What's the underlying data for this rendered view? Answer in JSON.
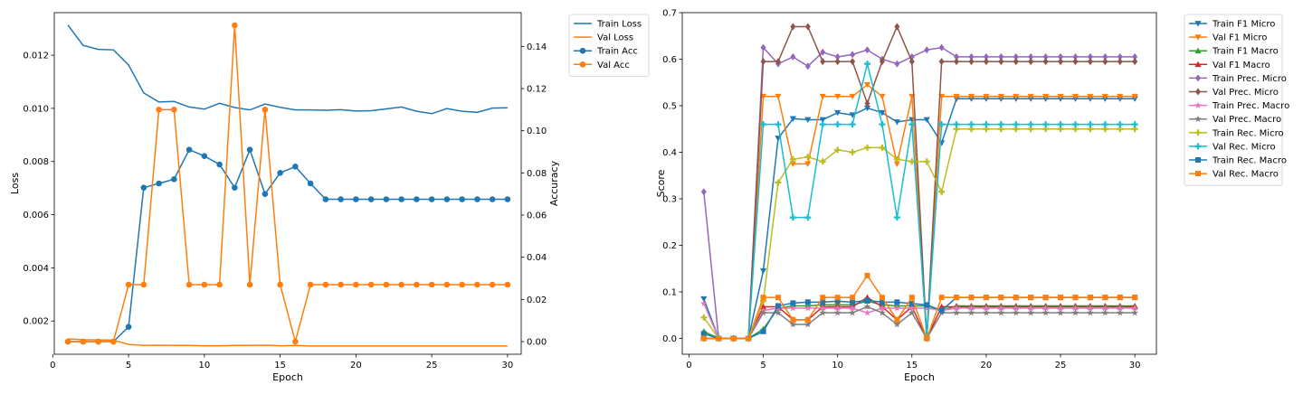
{
  "chart_data": [
    {
      "type": "line",
      "xlabel": "Epoch",
      "ylabel": "Loss",
      "ylabel_right": "Accuracy",
      "xlim": [
        0.1,
        30.9
      ],
      "ylim": [
        0.00075,
        0.0136
      ],
      "ylim_right": [
        -0.006,
        0.156
      ],
      "xticks": [
        0,
        5,
        10,
        15,
        20,
        25,
        30
      ],
      "yticks": [
        0.002,
        0.004,
        0.006,
        0.008,
        0.01,
        0.012
      ],
      "yticks_right": [
        0.0,
        0.02,
        0.04,
        0.06,
        0.08,
        0.1,
        0.12,
        0.14
      ],
      "legend_position": "outside-top-right",
      "x": [
        1,
        2,
        3,
        4,
        5,
        6,
        7,
        8,
        9,
        10,
        11,
        12,
        13,
        14,
        15,
        16,
        17,
        18,
        19,
        20,
        21,
        22,
        23,
        24,
        25,
        26,
        27,
        28,
        29,
        30
      ],
      "series": [
        {
          "name": "Train Loss",
          "axis": "left",
          "color": "#1f77b4",
          "marker": "none",
          "values": [
            0.01313,
            0.01237,
            0.01222,
            0.0122,
            0.01163,
            0.01058,
            0.01024,
            0.01026,
            0.01005,
            0.00997,
            0.01019,
            0.01003,
            0.00994,
            0.01016,
            0.01004,
            0.00994,
            0.00994,
            0.00993,
            0.00995,
            0.0099,
            0.00991,
            0.00998,
            0.01005,
            0.00989,
            0.0098,
            0.00999,
            0.00989,
            0.00985,
            0.01001,
            0.01002
          ]
        },
        {
          "name": "Val Loss",
          "axis": "left",
          "color": "#ff7f0e",
          "marker": "none",
          "values": [
            0.00133,
            0.0013,
            0.00129,
            0.00128,
            0.00112,
            0.00108,
            0.00109,
            0.00108,
            0.00108,
            0.00107,
            0.00107,
            0.00108,
            0.00108,
            0.00109,
            0.00107,
            0.00108,
            0.00106,
            0.00106,
            0.00106,
            0.00106,
            0.00106,
            0.00106,
            0.00106,
            0.00106,
            0.00106,
            0.00106,
            0.00106,
            0.00106,
            0.00106,
            0.00106
          ]
        },
        {
          "name": "Train Acc",
          "axis": "right",
          "color": "#1f77b4",
          "marker": "circle",
          "values": [
            0,
            0,
            0,
            0,
            0.007,
            0.073,
            0.075,
            0.077,
            0.091,
            0.088,
            0.084,
            0.073,
            0.091,
            0.07,
            0.08,
            0.083,
            0.075,
            0.0675,
            0.0675,
            0.0675,
            0.0675,
            0.0675,
            0.0675,
            0.0675,
            0.0675,
            0.0675,
            0.0675,
            0.0675,
            0.0675,
            0.0675
          ]
        },
        {
          "name": "Val Acc",
          "axis": "right",
          "color": "#ff7f0e",
          "marker": "circle",
          "values": [
            0,
            0,
            0,
            0,
            0.027,
            0.027,
            0.11,
            0.11,
            0.027,
            0.027,
            0.027,
            0.15,
            0.027,
            0.11,
            0.027,
            0,
            0.027,
            0.027,
            0.027,
            0.027,
            0.027,
            0.027,
            0.027,
            0.027,
            0.027,
            0.027,
            0.027,
            0.027,
            0.027,
            0.027
          ]
        }
      ]
    },
    {
      "type": "line",
      "xlabel": "Epoch",
      "ylabel": "Score",
      "xlim": [
        -0.45,
        31.45
      ],
      "ylim": [
        -0.034,
        0.7
      ],
      "xticks": [
        0,
        5,
        10,
        15,
        20,
        25,
        30
      ],
      "yticks": [
        0.0,
        0.1,
        0.2,
        0.3,
        0.4,
        0.5,
        0.6,
        0.7
      ],
      "legend_position": "outside-top-right",
      "x": [
        1,
        2,
        3,
        4,
        5,
        6,
        7,
        8,
        9,
        10,
        11,
        12,
        13,
        14,
        15,
        16,
        17,
        18,
        19,
        20,
        21,
        22,
        23,
        24,
        25,
        26,
        27,
        28,
        29,
        30
      ],
      "series": [
        {
          "name": "Train F1 Micro",
          "color": "#1f77b4",
          "marker": "tri-down",
          "values": [
            0.085,
            0,
            0,
            0,
            0.145,
            0.43,
            0.472,
            0.47,
            0.47,
            0.485,
            0.48,
            0.495,
            0.485,
            0.465,
            0.47,
            0.47,
            0.42,
            0.515,
            0.515,
            0.515,
            0.515,
            0.515,
            0.515,
            0.515,
            0.515,
            0.515,
            0.515,
            0.515,
            0.515,
            0.515
          ]
        },
        {
          "name": "Val F1 Micro",
          "color": "#ff7f0e",
          "marker": "tri-down",
          "values": [
            0,
            0,
            0,
            0,
            0.52,
            0.52,
            0.375,
            0.375,
            0.52,
            0.52,
            0.52,
            0.545,
            0.52,
            0.375,
            0.52,
            0,
            0.52,
            0.52,
            0.52,
            0.52,
            0.52,
            0.52,
            0.52,
            0.52,
            0.52,
            0.52,
            0.52,
            0.52,
            0.52,
            0.52
          ]
        },
        {
          "name": "Train F1 Macro",
          "color": "#2ca02c",
          "marker": "tri-up",
          "values": [
            0.015,
            0,
            0,
            0,
            0.02,
            0.065,
            0.07,
            0.07,
            0.072,
            0.072,
            0.072,
            0.08,
            0.072,
            0.07,
            0.07,
            0.07,
            0.06,
            0.07,
            0.07,
            0.07,
            0.07,
            0.07,
            0.07,
            0.07,
            0.07,
            0.07,
            0.07,
            0.07,
            0.07,
            0.07
          ]
        },
        {
          "name": "Val F1 Macro",
          "color": "#d62728",
          "marker": "tri-up",
          "values": [
            0,
            0,
            0,
            0,
            0.068,
            0.068,
            0.04,
            0.04,
            0.068,
            0.068,
            0.068,
            0.088,
            0.068,
            0.04,
            0.068,
            0,
            0.068,
            0.068,
            0.068,
            0.068,
            0.068,
            0.068,
            0.068,
            0.068,
            0.068,
            0.068,
            0.068,
            0.068,
            0.068,
            0.068
          ]
        },
        {
          "name": "Train Prec. Micro",
          "color": "#9467bd",
          "marker": "diamond",
          "values": [
            0.315,
            0,
            0,
            0,
            0.625,
            0.59,
            0.605,
            0.585,
            0.615,
            0.605,
            0.61,
            0.62,
            0.6,
            0.59,
            0.605,
            0.62,
            0.625,
            0.605,
            0.605,
            0.605,
            0.605,
            0.605,
            0.605,
            0.605,
            0.605,
            0.605,
            0.605,
            0.605,
            0.605,
            0.605
          ]
        },
        {
          "name": "Val Prec. Micro",
          "color": "#8c564b",
          "marker": "diamond",
          "values": [
            0,
            0,
            0,
            0,
            0.595,
            0.595,
            0.67,
            0.67,
            0.595,
            0.595,
            0.595,
            0.505,
            0.595,
            0.67,
            0.595,
            0,
            0.595,
            0.595,
            0.595,
            0.595,
            0.595,
            0.595,
            0.595,
            0.595,
            0.595,
            0.595,
            0.595,
            0.595,
            0.595,
            0.595
          ]
        },
        {
          "name": "Train Prec. Macro",
          "color": "#e377c2",
          "marker": "star",
          "values": [
            0.075,
            0,
            0,
            0,
            0.06,
            0.065,
            0.065,
            0.065,
            0.065,
            0.065,
            0.065,
            0.055,
            0.065,
            0.065,
            0.065,
            0.065,
            0.06,
            0.065,
            0.065,
            0.065,
            0.065,
            0.065,
            0.065,
            0.065,
            0.065,
            0.065,
            0.065,
            0.065,
            0.065,
            0.065
          ]
        },
        {
          "name": "Val Prec. Macro",
          "color": "#7f7f7f",
          "marker": "star",
          "values": [
            0,
            0,
            0,
            0,
            0.055,
            0.055,
            0.03,
            0.03,
            0.055,
            0.055,
            0.055,
            0.068,
            0.055,
            0.03,
            0.055,
            0,
            0.055,
            0.055,
            0.055,
            0.055,
            0.055,
            0.055,
            0.055,
            0.055,
            0.055,
            0.055,
            0.055,
            0.055,
            0.055,
            0.055
          ]
        },
        {
          "name": "Train Rec. Micro",
          "color": "#bcbd22",
          "marker": "plus",
          "values": [
            0.045,
            0,
            0,
            0,
            0.08,
            0.335,
            0.385,
            0.39,
            0.38,
            0.405,
            0.4,
            0.41,
            0.41,
            0.385,
            0.38,
            0.38,
            0.315,
            0.45,
            0.45,
            0.45,
            0.45,
            0.45,
            0.45,
            0.45,
            0.45,
            0.45,
            0.45,
            0.45,
            0.45,
            0.45
          ]
        },
        {
          "name": "Val Rec. Micro",
          "color": "#17becf",
          "marker": "plus",
          "values": [
            0,
            0,
            0,
            0,
            0.46,
            0.46,
            0.26,
            0.26,
            0.46,
            0.46,
            0.46,
            0.59,
            0.46,
            0.26,
            0.46,
            0,
            0.46,
            0.46,
            0.46,
            0.46,
            0.46,
            0.46,
            0.46,
            0.46,
            0.46,
            0.46,
            0.46,
            0.46,
            0.46,
            0.46
          ]
        },
        {
          "name": "Train Rec. Macro",
          "color": "#1f77b4",
          "marker": "square",
          "values": [
            0.01,
            0,
            0,
            0,
            0.015,
            0.07,
            0.076,
            0.078,
            0.078,
            0.08,
            0.078,
            0.082,
            0.078,
            0.078,
            0.075,
            0.072,
            0.06,
            0.088,
            0.088,
            0.088,
            0.088,
            0.088,
            0.088,
            0.088,
            0.088,
            0.088,
            0.088,
            0.088,
            0.088,
            0.088
          ]
        },
        {
          "name": "Val Rec. Macro",
          "color": "#ff7f0e",
          "marker": "square",
          "values": [
            0,
            0,
            0,
            0,
            0.088,
            0.088,
            0.04,
            0.04,
            0.088,
            0.088,
            0.088,
            0.135,
            0.088,
            0.04,
            0.088,
            0,
            0.088,
            0.088,
            0.088,
            0.088,
            0.088,
            0.088,
            0.088,
            0.088,
            0.088,
            0.088,
            0.088,
            0.088,
            0.088,
            0.088
          ]
        }
      ]
    }
  ]
}
